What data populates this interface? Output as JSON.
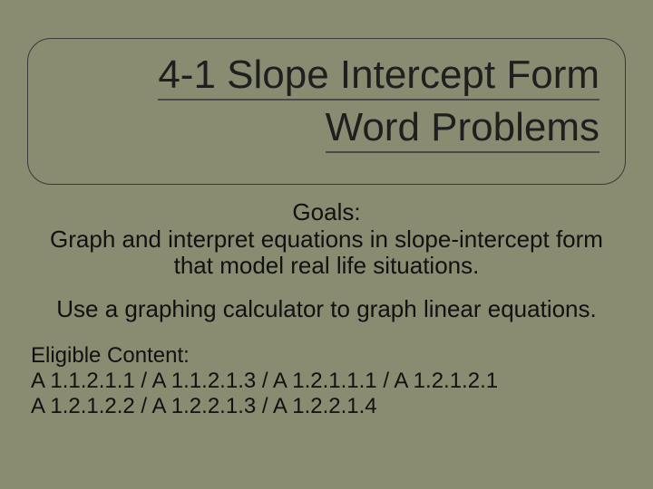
{
  "slide": {
    "background_color": "#8a8c72",
    "title": {
      "line1": "4-1 Slope Intercept Form",
      "line2": "Word Problems",
      "font_size": 44,
      "color": "#1f1f1f",
      "underline_color": "#4a4a4a",
      "box_border_color": "#3a3a3a",
      "box_border_radius": 26
    },
    "goals": {
      "heading": "Goals:",
      "text": "Graph and interpret equations in slope-intercept form that model real life situations.",
      "font_size": 26
    },
    "calculator": {
      "text": "Use a graphing calculator to graph linear equations.",
      "font_size": 26
    },
    "eligible": {
      "heading": "Eligible Content:",
      "line1": "A 1.1.2.1.1 / A 1.1.2.1.3 / A 1.2.1.1.1 / A 1.2.1.2.1",
      "line2": "A 1.2.1.2.2 / A 1.2.2.1.3 / A 1.2.2.1.4",
      "font_size": 24
    }
  }
}
